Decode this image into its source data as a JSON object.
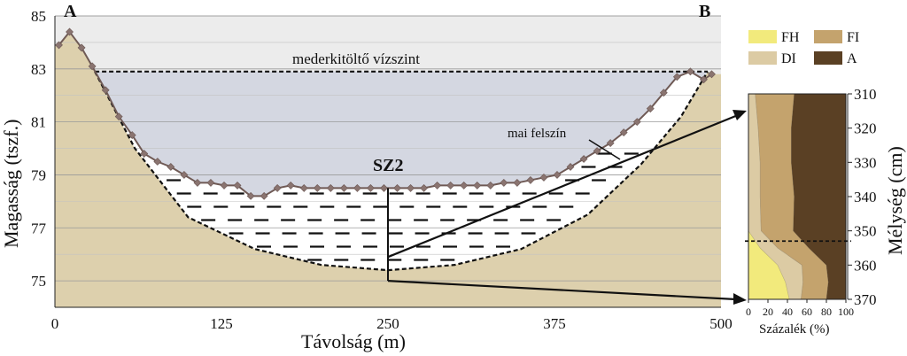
{
  "chart_data": [
    {
      "type": "line",
      "xlabel": "Távolság (m)",
      "ylabel": "Magasság (tszf.)",
      "xlim": [
        0,
        500
      ],
      "ylim": [
        74,
        85
      ],
      "x_ticks": [
        0,
        125,
        250,
        375,
        500
      ],
      "y_ticks": [
        75,
        77,
        79,
        81,
        83,
        85
      ],
      "grid": "horizontal",
      "section_start_label": "A",
      "section_end_label": "B",
      "core_label": "SZ2",
      "fill_level_label": "mederkitöltő vízszint",
      "fill_level_value": 82.9,
      "surface_label": "mai felszín",
      "core_x": 250,
      "core_top": 78.5,
      "core_bottom": 75.0,
      "core_link_y": 75.9,
      "channel_bottom": {
        "x": [
          30,
          60,
          100,
          150,
          200,
          250,
          300,
          350,
          400,
          440,
          470,
          490
        ],
        "y": [
          82.9,
          80.0,
          77.4,
          76.2,
          75.6,
          75.4,
          75.6,
          76.2,
          77.5,
          79.4,
          81.2,
          82.9
        ]
      },
      "series": [
        {
          "name": "mai felszín",
          "color": "#6f5a55",
          "x": [
            3,
            11,
            20,
            28,
            38,
            48,
            58,
            67,
            77,
            87,
            97,
            107,
            117,
            127,
            137,
            147,
            157,
            167,
            177,
            187,
            197,
            207,
            217,
            227,
            237,
            247,
            257,
            267,
            277,
            287,
            297,
            307,
            317,
            327,
            337,
            347,
            357,
            367,
            377,
            387,
            397,
            407,
            417,
            427,
            437,
            447,
            457,
            467,
            477,
            487,
            493
          ],
          "y": [
            83.9,
            84.4,
            83.8,
            83.1,
            82.2,
            81.2,
            80.5,
            79.8,
            79.5,
            79.3,
            79.0,
            78.7,
            78.7,
            78.6,
            78.6,
            78.2,
            78.2,
            78.5,
            78.6,
            78.5,
            78.5,
            78.5,
            78.5,
            78.5,
            78.5,
            78.5,
            78.5,
            78.5,
            78.5,
            78.6,
            78.6,
            78.6,
            78.6,
            78.6,
            78.7,
            78.7,
            78.8,
            78.9,
            79.0,
            79.3,
            79.6,
            79.9,
            80.2,
            80.6,
            81.0,
            81.5,
            82.1,
            82.7,
            82.9,
            82.6,
            82.8
          ]
        }
      ]
    },
    {
      "type": "area",
      "xlabel": "Százalék (%)",
      "ylabel": "Mélység (cm)",
      "xlim": [
        0,
        100
      ],
      "ylim": [
        310,
        370
      ],
      "x_ticks": [
        0,
        20,
        40,
        60,
        80,
        100
      ],
      "y_ticks": [
        310,
        320,
        330,
        340,
        350,
        360,
        370
      ],
      "boundary_depth": 353,
      "legend": [
        {
          "name": "FH",
          "color": "#f2ea7c"
        },
        {
          "name": "FI",
          "color": "#c4a36d"
        },
        {
          "name": "DI",
          "color": "#dccba4"
        },
        {
          "name": "A",
          "color": "#5a4024"
        }
      ],
      "depths": [
        310,
        320,
        330,
        340,
        350,
        355,
        360,
        365,
        370
      ],
      "series": [
        {
          "name": "FH",
          "color": "#f2ea7c",
          "values": [
            0,
            0,
            0,
            0,
            0,
            12,
            30,
            38,
            42
          ]
        },
        {
          "name": "DI",
          "color": "#dccba4",
          "values": [
            7,
            10,
            12,
            12,
            13,
            18,
            25,
            18,
            12
          ]
        },
        {
          "name": "FI",
          "color": "#c4a36d",
          "values": [
            40,
            34,
            32,
            35,
            33,
            32,
            25,
            26,
            26
          ]
        },
        {
          "name": "A",
          "color": "#5a4024",
          "values": [
            53,
            56,
            56,
            53,
            54,
            38,
            20,
            18,
            20
          ]
        }
      ]
    }
  ]
}
